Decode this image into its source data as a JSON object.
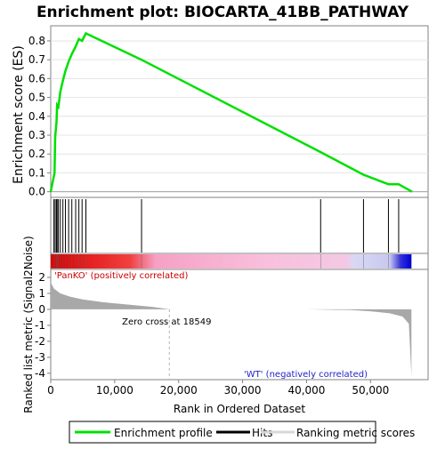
{
  "chart_data": {
    "type": "line",
    "title": "Enrichment plot: BIOCARTA_41BB_PATHWAY",
    "ylabel_top": "Enrichment score (ES)",
    "ylabel_bottom": "Ranked list metric (Signal2Noise)",
    "xlabel": "Rank in Ordered Dataset",
    "x_ticks": [
      "0",
      "10,000",
      "20,000",
      "30,000",
      "40,000",
      "50,000"
    ],
    "x_tick_values": [
      0,
      10000,
      20000,
      30000,
      40000,
      50000
    ],
    "xlim": [
      0,
      59000
    ],
    "es_ylim": [
      -0.03,
      0.88
    ],
    "es_y_ticks": [
      "0.0",
      "0.1",
      "0.2",
      "0.3",
      "0.4",
      "0.5",
      "0.6",
      "0.7",
      "0.8"
    ],
    "es_y_tick_values": [
      0.0,
      0.1,
      0.2,
      0.3,
      0.4,
      0.5,
      0.6,
      0.7,
      0.8
    ],
    "metric_ylim": [
      -4.4,
      2.5
    ],
    "metric_y_ticks": [
      "2",
      "1",
      "0",
      "-1",
      "-2",
      "-3",
      "-4"
    ],
    "metric_y_tick_values": [
      2,
      1,
      0,
      -1,
      -2,
      -3,
      -4
    ],
    "enrichment_profile": {
      "x": [
        0,
        600,
        700,
        900,
        1000,
        1200,
        1500,
        1900,
        2300,
        2800,
        3300,
        3900,
        4400,
        4900,
        5500,
        14200,
        42200,
        48900,
        52800,
        54400,
        56500
      ],
      "y": [
        0.0,
        0.1,
        0.29,
        0.37,
        0.46,
        0.45,
        0.53,
        0.59,
        0.64,
        0.69,
        0.73,
        0.77,
        0.81,
        0.8,
        0.84,
        0.7,
        0.21,
        0.09,
        0.04,
        0.04,
        0.0
      ]
    },
    "hits": [
      500,
      700,
      900,
      1000,
      1200,
      1500,
      1900,
      2300,
      2800,
      3300,
      3900,
      4400,
      4900,
      5500,
      14200,
      42200,
      48900,
      52800,
      54400
    ],
    "ranking_metric": {
      "x": [
        0,
        500,
        1500,
        3000,
        5000,
        8000,
        12000,
        16000,
        18549,
        40000,
        47000,
        50000,
        53000,
        55000,
        56000,
        56400
      ],
      "y": [
        1.7,
        1.3,
        1.0,
        0.8,
        0.62,
        0.45,
        0.3,
        0.15,
        0.0,
        0.0,
        -0.05,
        -0.12,
        -0.25,
        -0.45,
        -0.9,
        -4.2
      ]
    },
    "zero_cross_rank": 18549,
    "annotations": {
      "pos": "'PanKO' (positively correlated)",
      "neg": "'WT' (negatively correlated)",
      "zero_cross": "Zero cross at 18549"
    },
    "legend": [
      "Enrichment profile",
      "Hits",
      "Ranking metric scores"
    ],
    "legend_position": "bottom",
    "colors": {
      "profile": "#00e000",
      "hits": "#000000",
      "metric": "#a8a8a8",
      "pos_label": "#cc0000",
      "neg_label": "#2222cc",
      "zero_line": "#b0b0b0"
    }
  }
}
